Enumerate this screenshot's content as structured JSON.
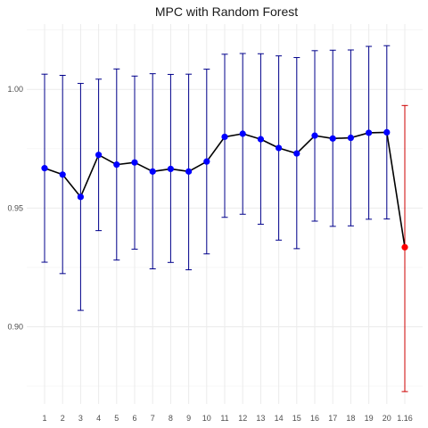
{
  "chart_data": {
    "type": "line",
    "title": "MPC with Random Forest",
    "xlabel": "",
    "ylabel": "",
    "grid": true,
    "legend": "none",
    "ylim": [
      0.8675,
      1.0275
    ],
    "yticks": [
      "0.90",
      "0.95",
      "1.00"
    ],
    "ytick_values": [
      0.9,
      0.95,
      1.0
    ],
    "categories": [
      "1",
      "2",
      "3",
      "4",
      "5",
      "6",
      "7",
      "8",
      "9",
      "10",
      "11",
      "12",
      "13",
      "14",
      "15",
      "16",
      "17",
      "18",
      "19",
      "20",
      "1.16"
    ],
    "values": [
      0.9668,
      0.9641,
      0.9547,
      0.9724,
      0.9683,
      0.9692,
      0.9654,
      0.9665,
      0.9654,
      0.9696,
      0.98,
      0.9813,
      0.979,
      0.9753,
      0.973,
      0.9805,
      0.9793,
      0.9796,
      0.9817,
      0.9819,
      0.9335
    ],
    "lower": [
      0.9272,
      0.9224,
      0.9069,
      0.9405,
      0.9281,
      0.9327,
      0.9244,
      0.9271,
      0.924,
      0.9307,
      0.9461,
      0.9474,
      0.9432,
      0.9365,
      0.9329,
      0.9445,
      0.9423,
      0.9425,
      0.9453,
      0.9454,
      0.8727
    ],
    "upper": [
      1.0064,
      1.0059,
      1.0025,
      1.0043,
      1.0086,
      1.0056,
      1.0066,
      1.0063,
      1.0064,
      1.0085,
      1.0148,
      1.0151,
      1.015,
      1.0141,
      1.0134,
      1.0163,
      1.0165,
      1.0166,
      1.0181,
      1.0184,
      0.9932
    ],
    "colors": {
      "line": "#000000",
      "point": "#0000ff",
      "errorbar": "#00008b",
      "highlight_point": "#ff0000",
      "highlight_errorbar": "#cd0000",
      "grid_major": "#ebebeb",
      "grid_minor": "#f4f4f4"
    }
  }
}
